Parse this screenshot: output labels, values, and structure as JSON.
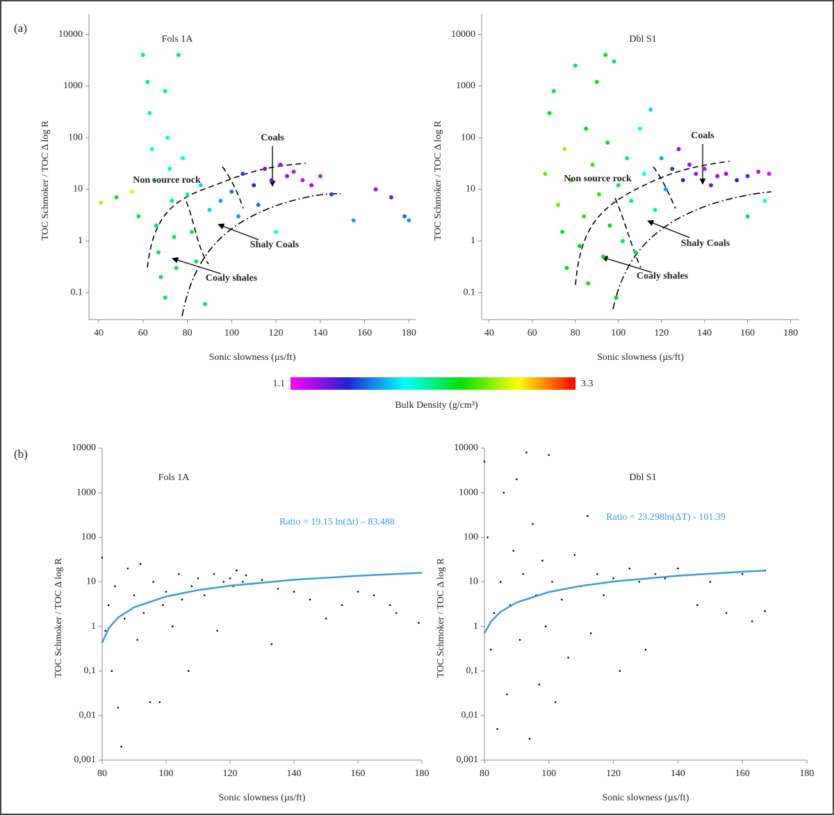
{
  "panels": [
    "(a)",
    "(b)"
  ],
  "colorbar": {
    "min": 1.1,
    "max": 3.3,
    "label": "Bulk Density (g/cm³)",
    "colors": [
      "#ff00ff",
      "#2222d0",
      "#00ffff",
      "#00e000",
      "#ffff00",
      "#ff0000"
    ]
  },
  "chart_data": [
    {
      "type": "scatter",
      "title": "Fols 1A",
      "xlabel": "Sonic slowness (µs/ft)",
      "ylabel": "TOC Schmoker / TOC Δ log R",
      "log_y": true,
      "xlim": [
        35.6,
        183
      ],
      "ylim": [
        0.03,
        25000
      ],
      "xticks": [
        40,
        60,
        80,
        100,
        120,
        140,
        160,
        180
      ],
      "yticks": [
        0.1,
        1,
        10,
        100,
        1000,
        10000
      ],
      "annotations": [
        "Coals",
        "Non source rock",
        "Shaly Coals",
        "Coaly shales"
      ],
      "x": [
        41,
        48,
        55,
        58,
        60,
        62,
        63,
        64,
        65,
        66,
        67,
        68,
        70,
        70,
        71,
        72,
        73,
        74,
        75,
        76,
        78,
        80,
        82,
        84,
        88,
        86,
        90,
        95,
        100,
        103,
        105,
        110,
        112,
        115,
        118,
        122,
        125,
        128,
        132,
        136,
        140,
        145,
        155,
        165,
        172,
        178,
        180,
        120
      ],
      "series": [
        {
          "values": [
            5.5,
            7,
            9,
            3,
            4000,
            1200,
            300,
            60,
            15,
            2,
            0.6,
            0.2,
            0.08,
            800,
            100,
            25,
            6,
            1.2,
            0.3,
            4000,
            40,
            8,
            1.5,
            0.4,
            0.06,
            12,
            4,
            6,
            9,
            3,
            20,
            12,
            5,
            25,
            15,
            30,
            18,
            22,
            15,
            12,
            18,
            8,
            2.5,
            10,
            7,
            3,
            2.5,
            1.5
          ],
          "density": [
            2.7,
            2.4,
            2.8,
            2.3,
            2.2,
            2.2,
            2.1,
            2.0,
            2.1,
            2.3,
            2.3,
            2.3,
            2.3,
            2.2,
            2.0,
            2.0,
            2.2,
            2.3,
            2.3,
            2.2,
            2.0,
            2.1,
            2.3,
            2.3,
            2.3,
            1.9,
            1.9,
            1.8,
            1.7,
            1.8,
            1.6,
            1.5,
            1.7,
            1.4,
            1.4,
            1.3,
            1.3,
            1.2,
            1.2,
            1.3,
            1.2,
            1.6,
            1.8,
            1.3,
            1.4,
            1.7,
            1.8,
            2.0
          ]
        }
      ]
    },
    {
      "type": "scatter",
      "title": "Dbl S1",
      "xlabel": "Sonic slowness (µs/ft)",
      "ylabel": "TOC Schmoker / TOC Δ log R",
      "log_y": true,
      "xlim": [
        36.5,
        184
      ],
      "ylim": [
        0.03,
        25000
      ],
      "xticks": [
        40,
        60,
        80,
        100,
        120,
        140,
        160,
        180
      ],
      "yticks": [
        0.1,
        1,
        10,
        100,
        1000,
        10000
      ],
      "annotations": [
        "Coals",
        "Non source rock",
        "Shaly Coals",
        "Coaly shales"
      ],
      "x": [
        66,
        68,
        70,
        72,
        74,
        75,
        76,
        78,
        80,
        82,
        84,
        85,
        86,
        88,
        90,
        91,
        93,
        94,
        95,
        96,
        98,
        99,
        100,
        102,
        104,
        106,
        108,
        110,
        112,
        115,
        117,
        120,
        122,
        125,
        128,
        130,
        133,
        136,
        140,
        143,
        146,
        150,
        155,
        160,
        165,
        170,
        168,
        160
      ],
      "series": [
        {
          "values": [
            20,
            300,
            800,
            5,
            1.5,
            60,
            0.3,
            15,
            2500,
            0.8,
            3,
            150,
            0.15,
            30,
            1200,
            8,
            0.5,
            4000,
            80,
            2,
            3000,
            0.08,
            12,
            1,
            40,
            6,
            0.6,
            150,
            20,
            350,
            4,
            40,
            10,
            25,
            60,
            15,
            30,
            20,
            25,
            12,
            18,
            20,
            15,
            18,
            22,
            20,
            6,
            3
          ],
          "density": [
            2.6,
            2.4,
            2.3,
            2.6,
            2.4,
            2.7,
            2.4,
            2.5,
            2.3,
            2.4,
            2.5,
            2.4,
            2.4,
            2.5,
            2.4,
            2.5,
            2.4,
            2.4,
            2.4,
            2.4,
            2.3,
            2.4,
            2.3,
            2.3,
            2.2,
            2.2,
            2.3,
            2.0,
            2.0,
            1.9,
            2.1,
            1.8,
            1.8,
            1.6,
            1.3,
            1.5,
            1.3,
            1.3,
            1.2,
            1.4,
            1.3,
            1.3,
            1.5,
            1.4,
            1.2,
            1.15,
            2.0,
            2.3
          ]
        }
      ]
    },
    {
      "type": "scatter",
      "title": "Fols 1A",
      "xlabel": "Sonic slowness (µs/ft)",
      "ylabel": "TOC Schmoker / TOC Δ log R",
      "log_y": true,
      "xlim": [
        80,
        180
      ],
      "ylim": [
        0.001,
        10000
      ],
      "xticks": [
        80,
        100,
        120,
        140,
        160,
        180
      ],
      "yticks": [
        {
          "value": 0.001,
          "label": "0,001"
        },
        {
          "value": 0.01,
          "label": "0,01"
        },
        {
          "value": 0.1,
          "label": "0,1"
        },
        1,
        10,
        100,
        1000,
        10000
      ],
      "x": [
        80,
        81,
        82,
        83,
        84,
        85,
        86,
        87,
        88,
        90,
        91,
        92,
        93,
        95,
        96,
        98,
        99,
        100,
        102,
        104,
        105,
        107,
        108,
        110,
        112,
        115,
        116,
        118,
        120,
        121,
        122,
        124,
        125,
        127,
        130,
        133,
        135,
        140,
        145,
        150,
        155,
        160,
        165,
        170,
        172,
        179
      ],
      "series": [
        {
          "color": "#000000",
          "values": [
            35,
            0.8,
            3,
            0.1,
            8,
            0.015,
            0.002,
            1.5,
            20,
            5,
            0.5,
            25,
            2,
            0.02,
            10,
            0.02,
            3,
            6,
            1,
            15,
            4,
            0.1,
            8,
            12,
            5,
            15,
            0.8,
            10,
            12,
            8,
            18,
            10,
            14,
            9,
            11,
            0.4,
            7,
            6,
            4,
            1.5,
            3,
            6,
            5,
            3,
            2,
            1.2
          ]
        }
      ],
      "fit": {
        "label": "Ratio = 19.15 ln(Δt) – 83.488",
        "color": "#3a9ad9",
        "x": [
          80,
          82,
          85,
          90,
          100,
          110,
          120,
          140,
          160,
          180
        ],
        "values": [
          0.43,
          0.9,
          1.59,
          2.68,
          4.7,
          6.53,
          8.19,
          11.14,
          13.7,
          15.96
        ]
      }
    },
    {
      "type": "scatter",
      "title": "Dbl S1",
      "xlabel": "Sonic slowness (µs/ft)",
      "ylabel": "TOC Schmoker / TOC Δ log R",
      "log_y": true,
      "xlim": [
        80,
        180
      ],
      "ylim": [
        0.001,
        10000
      ],
      "xticks": [
        80,
        100,
        120,
        140,
        160,
        180
      ],
      "yticks": [
        {
          "value": 0.001,
          "label": "0,001"
        },
        {
          "value": 0.01,
          "label": "0,01"
        },
        {
          "value": 0.1,
          "label": "0,1"
        },
        1,
        10,
        100,
        1000,
        10000
      ],
      "x": [
        80,
        81,
        82,
        83,
        84,
        85,
        86,
        87,
        88,
        89,
        90,
        91,
        92,
        93,
        94,
        95,
        96,
        97,
        98,
        99,
        100,
        101,
        102,
        104,
        106,
        108,
        110,
        112,
        113,
        115,
        117,
        120,
        122,
        125,
        128,
        130,
        133,
        136,
        140,
        143,
        146,
        150,
        155,
        160,
        163,
        167,
        167
      ],
      "series": [
        {
          "color": "#000000",
          "values": [
            5000,
            100,
            0.3,
            2,
            0.005,
            10,
            1000,
            0.03,
            3,
            50,
            2000,
            0.5,
            15,
            8000,
            0.003,
            200,
            5,
            0.05,
            30,
            1,
            7000,
            10,
            0.02,
            4,
            0.2,
            40,
            8,
            300,
            0.7,
            15,
            5,
            12,
            0.1,
            20,
            10,
            0.3,
            15,
            12,
            20,
            14,
            3,
            10,
            2,
            15,
            1.3,
            18,
            2.2
          ]
        }
      ],
      "fit": {
        "label": "Ratio = 23.298ln(ΔT)  - 101.39",
        "color": "#3a9ad9",
        "x": [
          80,
          82,
          85,
          90,
          100,
          110,
          120,
          140,
          160,
          167
        ],
        "values": [
          0.7,
          1.28,
          2.12,
          3.45,
          5.9,
          8.12,
          10.15,
          13.74,
          16.85,
          17.85
        ]
      }
    }
  ]
}
